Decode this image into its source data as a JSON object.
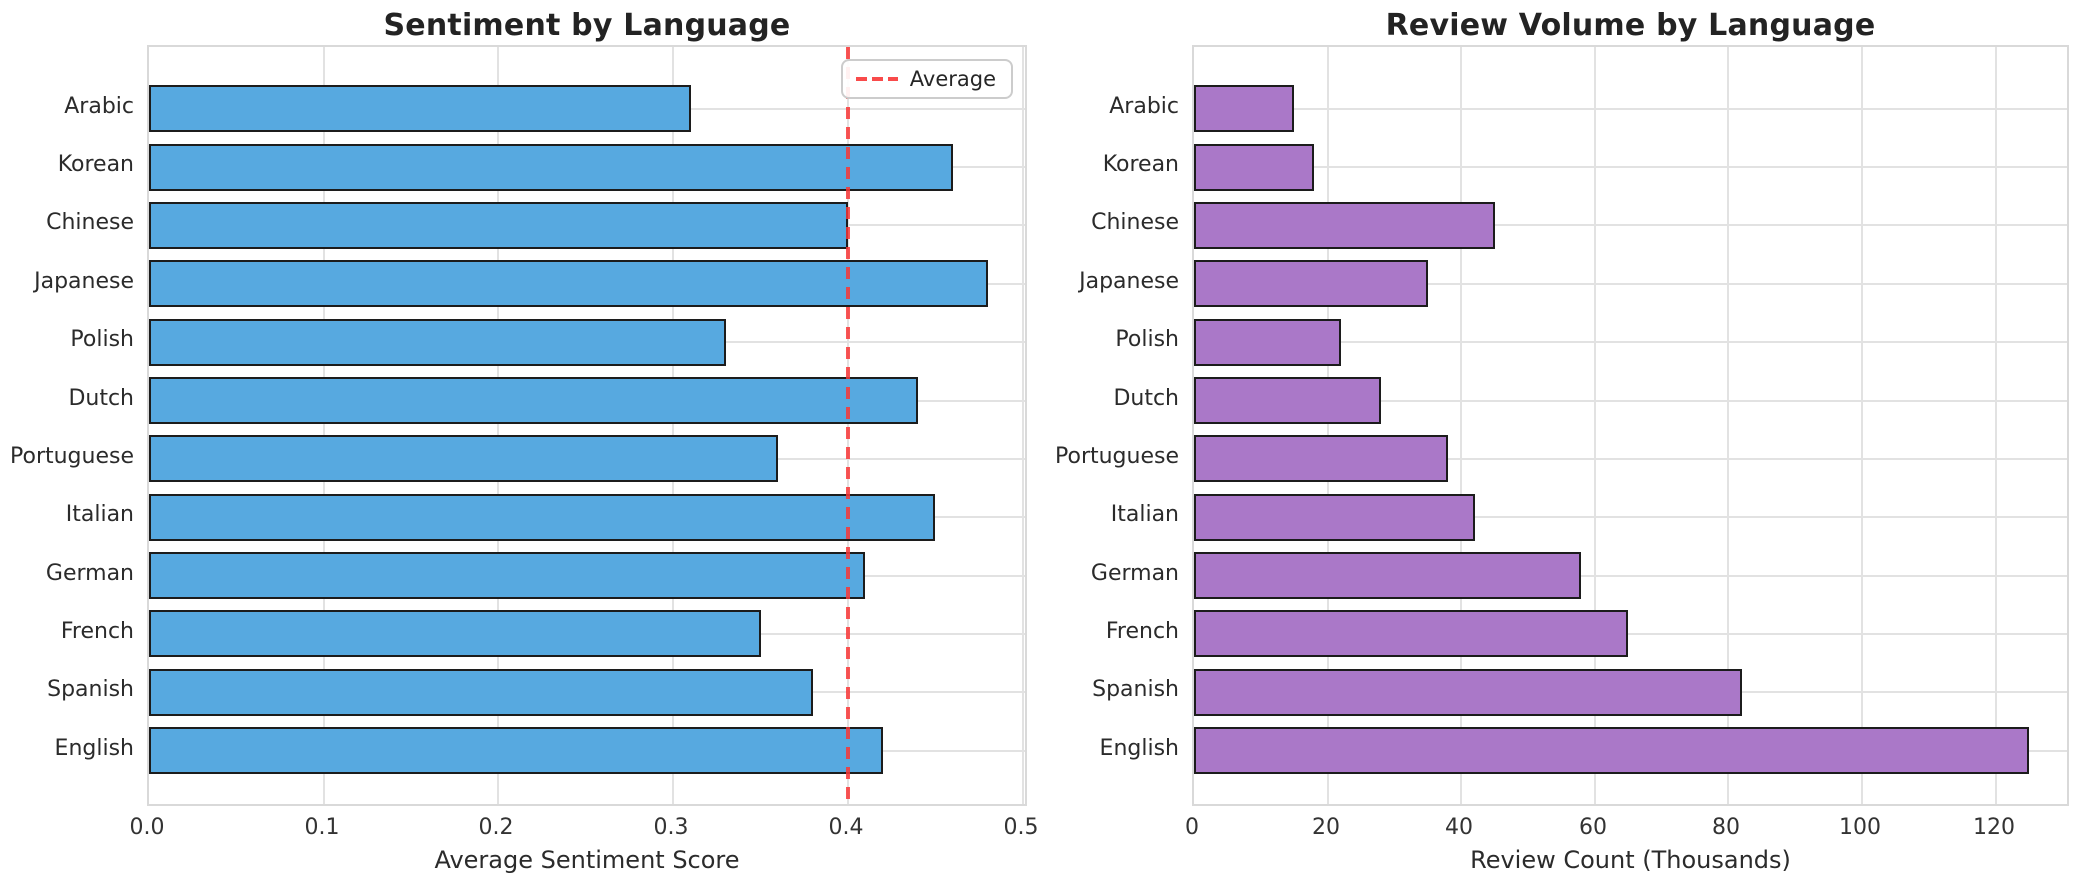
{
  "chart_data": [
    {
      "type": "bar",
      "orientation": "horizontal",
      "title": "Sentiment by Language",
      "xlabel": "Average Sentiment Score",
      "categories": [
        "Arabic",
        "Korean",
        "Chinese",
        "Japanese",
        "Polish",
        "Dutch",
        "Portuguese",
        "Italian",
        "German",
        "French",
        "Spanish",
        "English"
      ],
      "values": [
        0.31,
        0.46,
        0.4,
        0.48,
        0.33,
        0.44,
        0.36,
        0.45,
        0.41,
        0.35,
        0.38,
        0.42
      ],
      "xlim": [
        0,
        0.504
      ],
      "xtick_values": [
        0,
        0.1,
        0.2,
        0.3,
        0.4,
        0.5
      ],
      "xtick_labels": [
        "0.0",
        "0.1",
        "0.2",
        "0.3",
        "0.4",
        "0.5"
      ],
      "grid": true,
      "bar_color": "#57a9e0",
      "bar_edge_color": "#1c1c1c",
      "average_line": {
        "value": 0.4,
        "label": "Average",
        "color": "#f83737",
        "style": "dashed"
      },
      "legend": {
        "label": "Average",
        "position": "upper right"
      }
    },
    {
      "type": "bar",
      "orientation": "horizontal",
      "title": "Review Volume by Language",
      "xlabel": "Review Count (Thousands)",
      "categories": [
        "Arabic",
        "Korean",
        "Chinese",
        "Japanese",
        "Polish",
        "Dutch",
        "Portuguese",
        "Italian",
        "German",
        "French",
        "Spanish",
        "English"
      ],
      "values": [
        15,
        18,
        45,
        35,
        22,
        28,
        38,
        42,
        58,
        65,
        82,
        125
      ],
      "xlim": [
        0,
        131.25
      ],
      "xtick_values": [
        0,
        20,
        40,
        60,
        80,
        100,
        120
      ],
      "xtick_labels": [
        "0",
        "20",
        "40",
        "60",
        "80",
        "100",
        "120"
      ],
      "grid": true,
      "bar_color": "#aa78c8",
      "bar_edge_color": "#1c1c1c"
    }
  ]
}
